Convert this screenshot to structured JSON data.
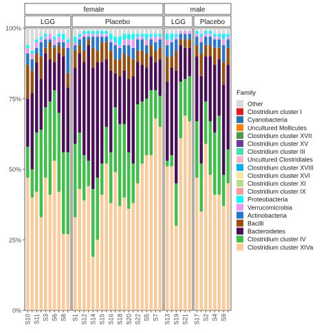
{
  "chart_data": {
    "type": "bar",
    "stacked": true,
    "ylim": [
      0,
      1
    ],
    "yticks": [
      {
        "value": 0,
        "label": "0%"
      },
      {
        "value": 0.25,
        "label": "25%"
      },
      {
        "value": 0.5,
        "label": "50%"
      },
      {
        "value": 0.75,
        "label": "75%"
      },
      {
        "value": 1,
        "label": "100%"
      }
    ],
    "grid": false,
    "xlabel": "",
    "ylabel": "",
    "legend": {
      "title": "Family",
      "position": "right",
      "entries": [
        {
          "name": "Other",
          "color": "#d9d9d9"
        },
        {
          "name": "Clostridium cluster I",
          "color": "#e31a1c"
        },
        {
          "name": "Cyanobacteria",
          "color": "#1f78b4"
        },
        {
          "name": "Uncultured Mollicutes",
          "color": "#ff7f00"
        },
        {
          "name": "Clostridium cluster XVII",
          "color": "#4a9a4a"
        },
        {
          "name": "Clostridium cluster XV",
          "color": "#6a3d9a"
        },
        {
          "name": "Clostridium cluster III",
          "color": "#40e0b0"
        },
        {
          "name": "Uncultured Clostridiales",
          "color": "#f7b6c2"
        },
        {
          "name": "Clostridium cluster XVIII",
          "color": "#00b0f0"
        },
        {
          "name": "Clostridium cluster XVI",
          "color": "#f5e6a8"
        },
        {
          "name": "Clostridium cluster XI",
          "color": "#b2df8a"
        },
        {
          "name": "Clostridium cluster IX",
          "color": "#fb9a99"
        },
        {
          "name": "Proteobacteria",
          "color": "#00ffff"
        },
        {
          "name": "Verrucomicrobia",
          "color": "#ee99ee"
        },
        {
          "name": "Actinobacteria",
          "color": "#2378d0"
        },
        {
          "name": "Bacilli",
          "color": "#9b4d0a"
        },
        {
          "name": "Bacteroidetes",
          "color": "#4b0c5a"
        },
        {
          "name": "Clostridium cluster IV",
          "color": "#3cc046"
        },
        {
          "name": "Clostridium cluster XIVa",
          "color": "#fcc999"
        }
      ]
    },
    "facet_top": [
      {
        "label": "female",
        "groups": 2
      },
      {
        "label": "male",
        "groups": 2
      }
    ],
    "groups": [
      {
        "label": "LGG",
        "sex": "female",
        "samples": [
          {
            "label": "S10",
            "v": [
              0.47,
              0.11,
              0.17,
              0.12,
              0.04,
              0.02,
              0.01,
              0.06
            ]
          },
          {
            "label": "",
            "v": [
              0.4,
              0.1,
              0.27,
              0.08,
              0.04,
              0.02,
              0.01,
              0.08
            ]
          },
          {
            "label": "S11",
            "v": [
              0.42,
              0.21,
              0.25,
              0.03,
              0.02,
              0.02,
              0.01,
              0.04
            ]
          },
          {
            "label": "",
            "v": [
              0.33,
              0.31,
              0.18,
              0.08,
              0.05,
              0.01,
              0.01,
              0.03
            ]
          },
          {
            "label": "S3",
            "v": [
              0.47,
              0.25,
              0.19,
              0.02,
              0.03,
              0.01,
              0.01,
              0.02
            ]
          },
          {
            "label": "",
            "v": [
              0.41,
              0.33,
              0.15,
              0.06,
              0.01,
              0.02,
              0.0,
              0.02
            ]
          },
          {
            "label": "S6",
            "v": [
              0.53,
              0.25,
              0.1,
              0.05,
              0.01,
              0.02,
              0.01,
              0.03
            ]
          },
          {
            "label": "",
            "v": [
              0.42,
              0.28,
              0.21,
              0.03,
              0.01,
              0.02,
              0.01,
              0.02
            ]
          },
          {
            "label": "S8",
            "v": [
              0.27,
              0.29,
              0.34,
              0.03,
              0.02,
              0.01,
              0.02,
              0.02
            ]
          },
          {
            "label": "",
            "v": [
              0.27,
              0.29,
              0.23,
              0.05,
              0.09,
              0.02,
              0.01,
              0.04
            ]
          }
        ]
      },
      {
        "label": "Placebo",
        "sex": "female",
        "samples": [
          {
            "label": "S1",
            "v": [
              0.33,
              0.26,
              0.27,
              0.06,
              0.02,
              0.01,
              0.02,
              0.03
            ]
          },
          {
            "label": "",
            "v": [
              0.43,
              0.2,
              0.28,
              0.03,
              0.02,
              0.01,
              0.01,
              0.02
            ]
          },
          {
            "label": "S12",
            "v": [
              0.39,
              0.16,
              0.33,
              0.04,
              0.05,
              0.01,
              0.01,
              0.01
            ]
          },
          {
            "label": "",
            "v": [
              0.44,
              0.09,
              0.41,
              0.02,
              0.01,
              0.01,
              0.01,
              0.01
            ]
          },
          {
            "label": "S14",
            "v": [
              0.19,
              0.24,
              0.43,
              0.07,
              0.04,
              0.01,
              0.01,
              0.01
            ]
          },
          {
            "label": "",
            "v": [
              0.25,
              0.22,
              0.41,
              0.04,
              0.05,
              0.01,
              0.01,
              0.01
            ]
          },
          {
            "label": "S15",
            "v": [
              0.41,
              0.11,
              0.36,
              0.07,
              0.02,
              0.01,
              0.01,
              0.01
            ]
          },
          {
            "label": "",
            "v": [
              0.52,
              0.13,
              0.24,
              0.06,
              0.02,
              0.01,
              0.01,
              0.01
            ]
          },
          {
            "label": "S16",
            "v": [
              0.38,
              0.18,
              0.29,
              0.07,
              0.03,
              0.01,
              0.02,
              0.02
            ]
          },
          {
            "label": "",
            "v": [
              0.49,
              0.23,
              0.12,
              0.05,
              0.05,
              0.01,
              0.02,
              0.03
            ]
          },
          {
            "label": "S18",
            "v": [
              0.37,
              0.29,
              0.17,
              0.06,
              0.04,
              0.01,
              0.03,
              0.03
            ]
          },
          {
            "label": "",
            "v": [
              0.4,
              0.26,
              0.19,
              0.06,
              0.03,
              0.02,
              0.02,
              0.02
            ]
          },
          {
            "label": "S20",
            "v": [
              0.36,
              0.2,
              0.26,
              0.08,
              0.04,
              0.02,
              0.02,
              0.02
            ]
          },
          {
            "label": "",
            "v": [
              0.38,
              0.14,
              0.31,
              0.06,
              0.04,
              0.03,
              0.02,
              0.02
            ]
          },
          {
            "label": "S22",
            "v": [
              0.45,
              0.28,
              0.15,
              0.04,
              0.04,
              0.01,
              0.01,
              0.02
            ]
          },
          {
            "label": "",
            "v": [
              0.52,
              0.22,
              0.13,
              0.05,
              0.04,
              0.01,
              0.01,
              0.02
            ]
          },
          {
            "label": "S5",
            "v": [
              0.55,
              0.2,
              0.11,
              0.05,
              0.03,
              0.02,
              0.02,
              0.02
            ]
          },
          {
            "label": "",
            "v": [
              0.55,
              0.23,
              0.12,
              0.04,
              0.02,
              0.01,
              0.01,
              0.02
            ]
          },
          {
            "label": "S7",
            "v": [
              0.68,
              0.1,
              0.1,
              0.04,
              0.03,
              0.02,
              0.01,
              0.02
            ]
          },
          {
            "label": "",
            "v": [
              0.65,
              0.11,
              0.13,
              0.04,
              0.03,
              0.01,
              0.01,
              0.02
            ]
          }
        ]
      },
      {
        "label": "LGG",
        "sex": "male",
        "samples": [
          {
            "label": "S13",
            "v": [
              0.51,
              0.02,
              0.28,
              0.09,
              0.04,
              0.02,
              0.02,
              0.02
            ]
          },
          {
            "label": "",
            "v": [
              0.51,
              0.04,
              0.31,
              0.04,
              0.05,
              0.01,
              0.02,
              0.02
            ]
          },
          {
            "label": "S19",
            "v": [
              0.3,
              0.15,
              0.4,
              0.07,
              0.04,
              0.01,
              0.01,
              0.02
            ]
          },
          {
            "label": "",
            "v": [
              0.61,
              0.2,
              0.13,
              0.02,
              0.02,
              0.01,
              0.0,
              0.01
            ]
          },
          {
            "label": "S21",
            "v": [
              0.69,
              0.13,
              0.11,
              0.03,
              0.02,
              0.01,
              0.0,
              0.01
            ]
          },
          {
            "label": "",
            "v": [
              0.67,
              0.16,
              0.1,
              0.03,
              0.02,
              0.01,
              0.0,
              0.01
            ]
          }
        ]
      },
      {
        "label": "Placebo",
        "sex": "male",
        "samples": [
          {
            "label": "S17",
            "v": [
              0.47,
              0.2,
              0.23,
              0.04,
              0.03,
              0.01,
              0.01,
              0.01
            ]
          },
          {
            "label": "",
            "v": [
              0.35,
              0.17,
              0.31,
              0.08,
              0.04,
              0.02,
              0.01,
              0.02
            ]
          },
          {
            "label": "S2",
            "v": [
              0.59,
              0.15,
              0.16,
              0.04,
              0.03,
              0.01,
              0.01,
              0.01
            ]
          },
          {
            "label": "",
            "v": [
              0.48,
              0.19,
              0.23,
              0.04,
              0.03,
              0.01,
              0.01,
              0.01
            ]
          },
          {
            "label": "S4",
            "v": [
              0.41,
              0.22,
              0.24,
              0.06,
              0.03,
              0.01,
              0.01,
              0.02
            ]
          },
          {
            "label": "",
            "v": [
              0.41,
              0.28,
              0.2,
              0.04,
              0.03,
              0.01,
              0.01,
              0.02
            ]
          },
          {
            "label": "S9",
            "v": [
              0.37,
              0.11,
              0.32,
              0.08,
              0.06,
              0.02,
              0.02,
              0.02
            ]
          },
          {
            "label": "",
            "v": [
              0.45,
              0.12,
              0.3,
              0.06,
              0.03,
              0.01,
              0.01,
              0.02
            ]
          }
        ]
      }
    ],
    "segment_order": [
      "Clostridium cluster XIVa",
      "Clostridium cluster IV",
      "Bacteroidetes",
      "Bacilli",
      "Actinobacteria",
      "Verrucomicrobia",
      "Proteobacteria",
      "Other"
    ]
  }
}
